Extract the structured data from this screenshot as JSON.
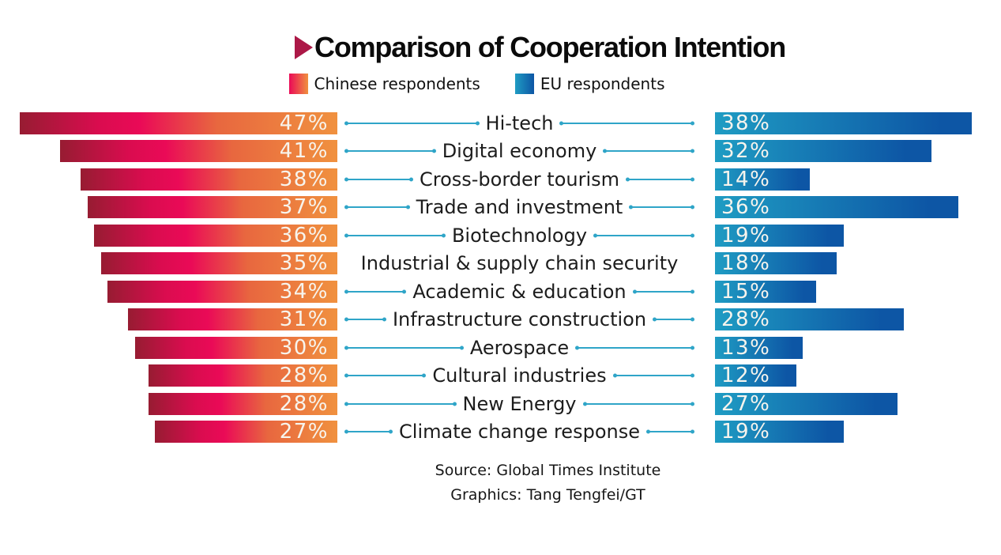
{
  "chart_data": {
    "type": "bar",
    "variant": "diverging-horizontal",
    "title": "Comparison of Cooperation Intention",
    "unit": "%",
    "legend": [
      "Chinese respondents",
      "EU respondents"
    ],
    "legend_position": "top",
    "grid": false,
    "value_labels": "inside-bar",
    "xlim": [
      0,
      47
    ],
    "categories": [
      "Hi-tech",
      "Digital economy",
      "Cross-border tourism",
      "Trade and investment",
      "Biotechnology",
      "Industrial & supply chain security",
      "Academic & education",
      "Infrastructure construction",
      "Aerospace",
      "Cultural industries",
      "New Energy",
      "Climate change response"
    ],
    "series": [
      {
        "name": "Chinese respondents",
        "side": "left",
        "values": [
          47,
          41,
          38,
          37,
          36,
          35,
          34,
          31,
          30,
          28,
          28,
          27
        ],
        "display": [
          "47%",
          "41%",
          "38%",
          "37%",
          "36%",
          "35%",
          "34%",
          "31%",
          "30%",
          "28%",
          "28%",
          "27%"
        ]
      },
      {
        "name": "EU respondents",
        "side": "right",
        "values": [
          38,
          32,
          14,
          36,
          19,
          18,
          15,
          28,
          13,
          12,
          27,
          19
        ],
        "display": [
          "38%",
          "32%",
          "14%",
          "36%",
          "19%",
          "18%",
          "15%",
          "28%",
          "13%",
          "12%",
          "27%",
          "19%"
        ]
      }
    ]
  },
  "footer": {
    "source": "Source: Global Times Institute",
    "graphics": "Graphics: Tang Tengfei/GT"
  },
  "colors": {
    "chinese_gradient_start": "#971C32",
    "chinese_gradient_mid": "#EA0A57",
    "chinese_gradient_end": "#F0913F",
    "eu_gradient_start": "#1F9CC3",
    "eu_gradient_end": "#0D56A5",
    "connector": "#2FA5C8",
    "title_marker": "#AC1847",
    "value_text": "#F7F4ED",
    "label_text": "#1C1C1C"
  }
}
